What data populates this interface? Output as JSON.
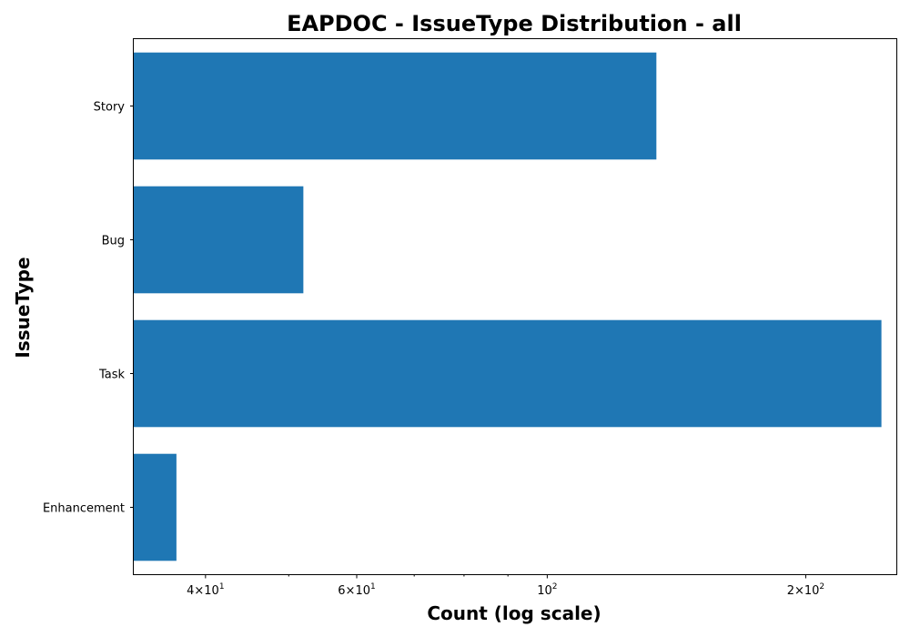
{
  "chart_data": {
    "type": "bar",
    "orientation": "horizontal",
    "title": "EAPDOC - IssueType Distribution - all",
    "xlabel": "Count (log scale)",
    "ylabel": "IssueType",
    "x_scale": "log",
    "xlim": [
      33,
      255
    ],
    "categories": [
      "Story",
      "Bug",
      "Task",
      "Enhancement"
    ],
    "values": [
      134,
      52,
      245,
      37
    ],
    "bar_color": "#1f77b4",
    "x_ticks": [
      {
        "value": 40,
        "base": "4",
        "mult": "×10",
        "exp": "1"
      },
      {
        "value": 60,
        "base": "6",
        "mult": "×10",
        "exp": "1"
      },
      {
        "value": 100,
        "base": "",
        "mult": "10",
        "exp": "2"
      },
      {
        "value": 200,
        "base": "2",
        "mult": "×10",
        "exp": "2"
      }
    ],
    "minor_ticks": [
      50,
      70,
      80,
      90
    ]
  }
}
